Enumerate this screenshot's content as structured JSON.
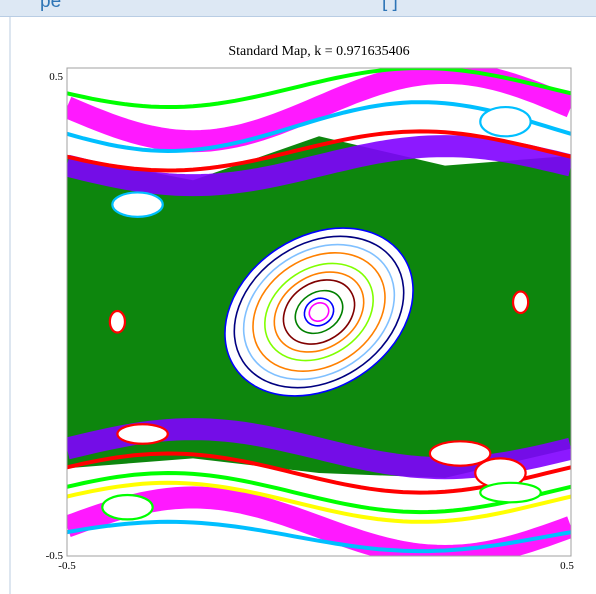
{
  "header": {
    "text_left": "pe",
    "text_right": "[ ]"
  },
  "chart_data": {
    "type": "scatter",
    "title": "Standard Map, k = 0.971635406",
    "xlim": [
      -0.5,
      0.5
    ],
    "ylim": [
      -0.5,
      0.5
    ],
    "x_tick_labels": [
      "-0.5",
      "0.5"
    ],
    "y_tick_labels": [
      "-0.5",
      "0.5"
    ],
    "grid": false,
    "series_colors": [
      "#008000",
      "#ff00ff",
      "#8000ff",
      "#00bfff",
      "#ff0000",
      "#00ff00",
      "#ffff00",
      "#0000ff",
      "#ff8000",
      "#800000",
      "#000080",
      "#80ff00",
      "#80c0ff",
      "#00ffff"
    ],
    "series": [
      {
        "kind": "chaotic_region",
        "color": "#008000",
        "points": [
          [
            -0.5,
            0.32
          ],
          [
            -0.25,
            0.27
          ],
          [
            0,
            0.36
          ],
          [
            0.25,
            0.3
          ],
          [
            0.5,
            0.32
          ],
          [
            0.5,
            -0.28
          ],
          [
            0.25,
            -0.34
          ],
          [
            0,
            -0.33
          ],
          [
            -0.25,
            -0.3
          ],
          [
            -0.5,
            -0.32
          ]
        ]
      },
      {
        "kind": "chaotic_band_top",
        "color": "#ff00ff",
        "center_y": 0.42,
        "amplitude": 0.07
      },
      {
        "kind": "chaotic_band_bottom",
        "color": "#ff00ff",
        "center_y": -0.44,
        "amplitude": 0.06
      },
      {
        "kind": "chaotic_band_upper",
        "color": "#8000ff",
        "center_y": 0.3,
        "amplitude": 0.04
      },
      {
        "kind": "chaotic_band_lower",
        "color": "#8000ff",
        "center_y": -0.28,
        "amplitude": 0.04
      },
      {
        "kind": "invariant_curve",
        "color": "#00bfff",
        "center_y": 0.38,
        "amplitude": 0.05
      },
      {
        "kind": "invariant_curve",
        "color": "#00bfff",
        "center_y": -0.46,
        "amplitude": 0.03
      },
      {
        "kind": "invariant_curve",
        "color": "#ff0000",
        "center_y": 0.33,
        "amplitude": 0.04
      },
      {
        "kind": "invariant_curve",
        "color": "#ff0000",
        "center_y": -0.33,
        "amplitude": 0.04
      },
      {
        "kind": "invariant_curve",
        "color": "#00ff00",
        "center_y": 0.46,
        "amplitude": 0.04
      },
      {
        "kind": "invariant_curve",
        "color": "#00ff00",
        "center_y": -0.37,
        "amplitude": 0.04
      },
      {
        "kind": "invariant_curve",
        "color": "#ffff00",
        "center_y": -0.39,
        "amplitude": 0.04
      },
      {
        "kind": "elliptic_orbit",
        "color": "#0000ff",
        "cx": 0.0,
        "cy": 0.0,
        "rx": 0.2,
        "ry": 0.155
      },
      {
        "kind": "elliptic_orbit",
        "color": "#000080",
        "cx": 0.0,
        "cy": 0.0,
        "rx": 0.18,
        "ry": 0.14
      },
      {
        "kind": "elliptic_orbit",
        "color": "#80c0ff",
        "cx": 0.0,
        "cy": 0.0,
        "rx": 0.16,
        "ry": 0.125
      },
      {
        "kind": "elliptic_orbit",
        "color": "#ff8000",
        "cx": 0.0,
        "cy": 0.0,
        "rx": 0.14,
        "ry": 0.11
      },
      {
        "kind": "elliptic_orbit",
        "color": "#80ff00",
        "cx": 0.0,
        "cy": 0.0,
        "rx": 0.115,
        "ry": 0.09
      },
      {
        "kind": "elliptic_orbit",
        "color": "#ff8000",
        "cx": 0.0,
        "cy": 0.0,
        "rx": 0.095,
        "ry": 0.074
      },
      {
        "kind": "elliptic_orbit",
        "color": "#800000",
        "cx": 0.0,
        "cy": 0.0,
        "rx": 0.075,
        "ry": 0.06
      },
      {
        "kind": "elliptic_orbit",
        "color": "#008000",
        "cx": 0.0,
        "cy": 0.0,
        "rx": 0.05,
        "ry": 0.04
      },
      {
        "kind": "elliptic_orbit",
        "color": "#0000ff",
        "cx": 0.0,
        "cy": 0.0,
        "rx": 0.03,
        "ry": 0.027
      },
      {
        "kind": "elliptic_orbit",
        "color": "#ff00ff",
        "cx": 0.0,
        "cy": 0.0,
        "rx": 0.02,
        "ry": 0.018
      },
      {
        "kind": "island",
        "color": "#00bfff",
        "cx": 0.37,
        "cy": 0.39,
        "rx": 0.05,
        "ry": 0.03
      },
      {
        "kind": "island",
        "color": "#00bfff",
        "cx": -0.36,
        "cy": 0.22,
        "rx": 0.05,
        "ry": 0.025
      },
      {
        "kind": "island",
        "color": "#ff0000",
        "cx": 0.28,
        "cy": -0.29,
        "rx": 0.06,
        "ry": 0.025
      },
      {
        "kind": "island",
        "color": "#ff0000",
        "cx": 0.36,
        "cy": -0.33,
        "rx": 0.05,
        "ry": 0.03
      },
      {
        "kind": "island",
        "color": "#ff0000",
        "cx": -0.35,
        "cy": -0.25,
        "rx": 0.05,
        "ry": 0.02
      },
      {
        "kind": "island",
        "color": "#ff0000",
        "cx": 0.4,
        "cy": 0.02,
        "rx": 0.015,
        "ry": 0.022
      },
      {
        "kind": "island",
        "color": "#ff0000",
        "cx": -0.4,
        "cy": -0.02,
        "rx": 0.015,
        "ry": 0.022
      },
      {
        "kind": "island",
        "color": "#00ff00",
        "cx": 0.38,
        "cy": -0.37,
        "rx": 0.06,
        "ry": 0.02
      },
      {
        "kind": "island",
        "color": "#00ff00",
        "cx": -0.38,
        "cy": -0.4,
        "rx": 0.05,
        "ry": 0.025
      }
    ]
  }
}
